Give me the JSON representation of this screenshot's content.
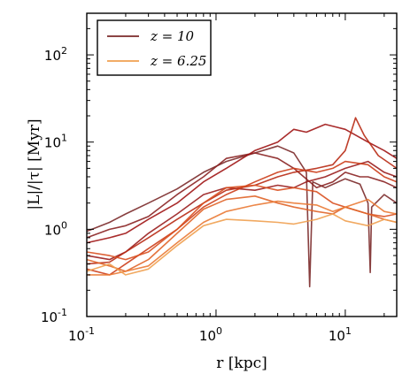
{
  "chart_data": {
    "type": "line",
    "xlabel": "r [kpc]",
    "ylabel": "|L|/|τ| [Myr]",
    "xscale": "log",
    "yscale": "log",
    "xlim": [
      0.1,
      25
    ],
    "ylim": [
      0.1,
      300
    ],
    "grid": false,
    "legend_position": "top-left",
    "x_ticks": [
      {
        "value": 0.1,
        "base": "10",
        "exp": "-1"
      },
      {
        "value": 1,
        "base": "10",
        "exp": "0"
      },
      {
        "value": 10,
        "base": "10",
        "exp": "1"
      }
    ],
    "y_ticks": [
      {
        "value": 0.1,
        "base": "10",
        "exp": "-1"
      },
      {
        "value": 1,
        "base": "10",
        "exp": "0"
      },
      {
        "value": 10,
        "base": "10",
        "exp": "1"
      },
      {
        "value": 100,
        "base": "10",
        "exp": "2"
      }
    ],
    "legend": [
      {
        "label": "z = 10",
        "color": "#7b2a2a"
      },
      {
        "label": "z = 6.25",
        "color": "#f0a050"
      }
    ],
    "series": [
      {
        "color": "#7b2a2a",
        "x": [
          0.1,
          0.15,
          0.2,
          0.3,
          0.5,
          0.8,
          1.2,
          2,
          3,
          4,
          5,
          5.3,
          5.6,
          7,
          10,
          13,
          15,
          15.6,
          16,
          20,
          25
        ],
        "y": [
          0.95,
          1.2,
          1.5,
          2.0,
          2.9,
          4.5,
          6.0,
          7.5,
          9.0,
          7.5,
          4.5,
          0.22,
          3.5,
          3.0,
          3.8,
          3.3,
          2.0,
          0.32,
          1.8,
          2.5,
          2.0
        ]
      },
      {
        "color": "#8a2222",
        "x": [
          0.1,
          0.15,
          0.2,
          0.3,
          0.5,
          0.8,
          1.2,
          2,
          3,
          4,
          6,
          8,
          10,
          13,
          15,
          20,
          25
        ],
        "y": [
          0.8,
          1.0,
          1.1,
          1.4,
          2.5,
          4.0,
          6.5,
          7.5,
          6.5,
          5.0,
          3.0,
          3.5,
          4.5,
          4.0,
          4.0,
          3.5,
          3.0
        ]
      },
      {
        "color": "#a01515",
        "x": [
          0.1,
          0.15,
          0.2,
          0.3,
          0.5,
          0.8,
          1.2,
          2,
          3,
          4,
          5,
          7,
          10,
          15,
          20,
          25
        ],
        "y": [
          0.7,
          0.8,
          0.9,
          1.3,
          2.0,
          3.5,
          5.0,
          8.0,
          10.0,
          14.0,
          13.0,
          16.0,
          14.0,
          10.0,
          8.0,
          6.5
        ]
      },
      {
        "color": "#9a1e1e",
        "x": [
          0.1,
          0.15,
          0.2,
          0.3,
          0.5,
          0.8,
          1.2,
          2,
          3,
          4,
          5,
          7,
          10,
          15,
          20,
          25
        ],
        "y": [
          0.5,
          0.45,
          0.55,
          0.9,
          1.5,
          2.5,
          3.0,
          2.8,
          3.2,
          3.0,
          3.5,
          4.0,
          5.0,
          6.0,
          4.5,
          4.0
        ]
      },
      {
        "color": "#b82a14",
        "x": [
          0.1,
          0.15,
          0.2,
          0.3,
          0.5,
          0.8,
          1.2,
          2,
          3,
          4,
          6,
          8,
          10,
          12,
          14,
          18,
          25
        ],
        "y": [
          0.4,
          0.42,
          0.55,
          0.8,
          1.3,
          2.0,
          2.8,
          3.2,
          4.0,
          4.5,
          5.0,
          5.5,
          8.0,
          19.0,
          12.0,
          7.0,
          5.0
        ]
      },
      {
        "color": "#cc3d1a",
        "x": [
          0.1,
          0.15,
          0.2,
          0.3,
          0.5,
          0.8,
          1.2,
          2,
          3,
          4,
          6,
          8,
          10,
          15,
          20,
          25
        ],
        "y": [
          0.35,
          0.3,
          0.4,
          0.6,
          1.0,
          1.8,
          2.5,
          3.5,
          4.5,
          5.0,
          4.5,
          5.0,
          6.0,
          5.5,
          4.0,
          3.5
        ]
      },
      {
        "color": "#d95020",
        "x": [
          0.1,
          0.15,
          0.2,
          0.3,
          0.5,
          0.8,
          1.2,
          2,
          3,
          4,
          6,
          8,
          10,
          15,
          20,
          25
        ],
        "y": [
          0.55,
          0.5,
          0.45,
          0.55,
          1.0,
          2.0,
          3.0,
          3.2,
          2.8,
          3.0,
          2.7,
          2.0,
          1.8,
          1.5,
          1.4,
          1.5
        ]
      },
      {
        "color": "#e06428",
        "x": [
          0.1,
          0.15,
          0.2,
          0.3,
          0.5,
          0.8,
          1.2,
          2,
          3,
          4,
          6,
          8,
          10,
          15,
          20,
          25
        ],
        "y": [
          0.45,
          0.38,
          0.33,
          0.45,
          0.9,
          1.7,
          2.2,
          2.4,
          2.0,
          1.8,
          1.6,
          1.5,
          1.8,
          1.5,
          1.3,
          1.2
        ]
      },
      {
        "color": "#ea7a35",
        "x": [
          0.1,
          0.15,
          0.2,
          0.3,
          0.5,
          0.8,
          1.2,
          2,
          3,
          4,
          6,
          8,
          10,
          15,
          20,
          25
        ],
        "y": [
          0.3,
          0.3,
          0.33,
          0.38,
          0.7,
          1.2,
          1.6,
          1.9,
          2.1,
          2.0,
          1.9,
          1.6,
          1.8,
          2.2,
          1.6,
          1.5
        ]
      },
      {
        "color": "#f0a050",
        "x": [
          0.1,
          0.15,
          0.2,
          0.3,
          0.5,
          0.8,
          1.2,
          2,
          3,
          4,
          6,
          8,
          10,
          15,
          20,
          25
        ],
        "y": [
          0.33,
          0.4,
          0.3,
          0.35,
          0.65,
          1.1,
          1.3,
          1.25,
          1.2,
          1.15,
          1.3,
          1.5,
          1.25,
          1.1,
          1.3,
          1.2
        ]
      }
    ]
  }
}
